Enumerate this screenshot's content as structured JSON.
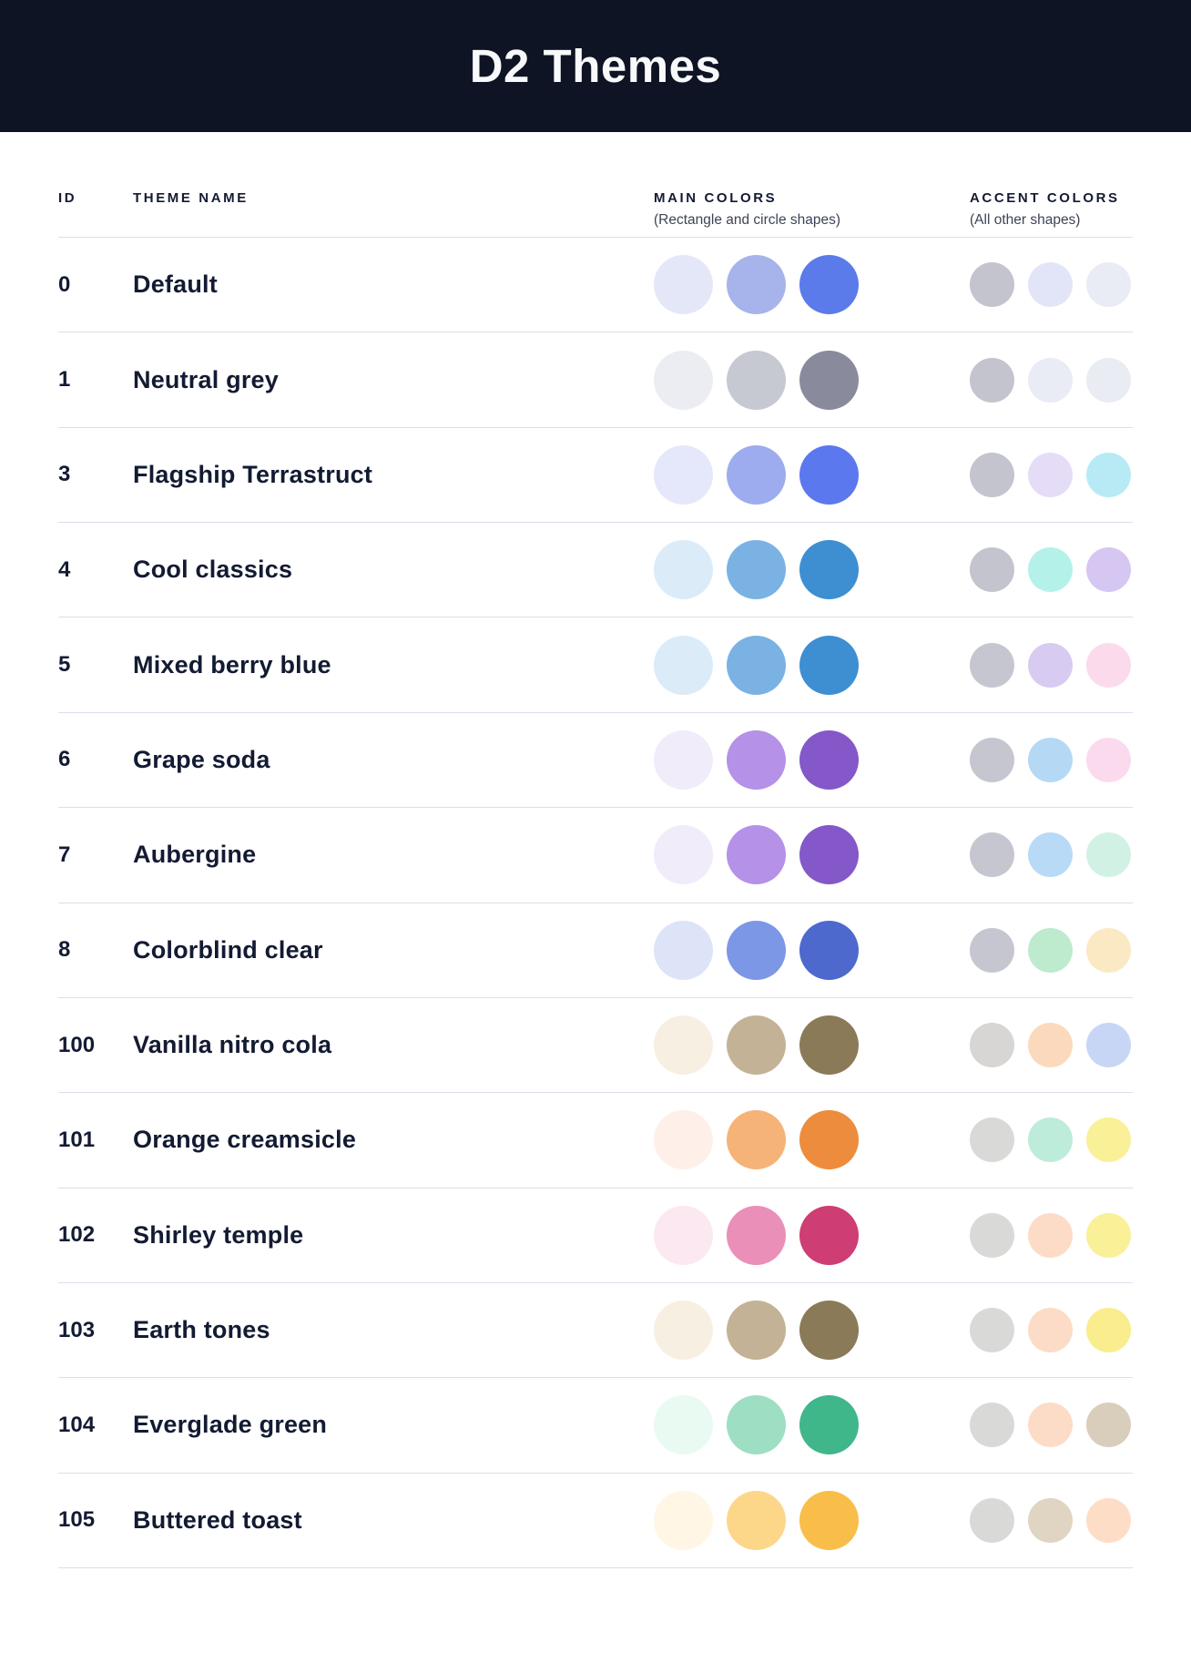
{
  "header": {
    "title": "D2 Themes"
  },
  "table": {
    "columns": {
      "id_label": "ID",
      "name_label": "THEME NAME",
      "main_label": "MAIN COLORS",
      "main_sublabel": "(Rectangle and circle shapes)",
      "accent_label": "ACCENT COLORS",
      "accent_sublabel": "(All other shapes)"
    },
    "rows": [
      {
        "id": "0",
        "name": "Default",
        "main": [
          "#E4E7F8",
          "#A6B4EB",
          "#5A7BE9"
        ],
        "accent": [
          "#C3C4CE",
          "#E2E5F8",
          "#EAECF5"
        ]
      },
      {
        "id": "1",
        "name": "Neutral grey",
        "main": [
          "#EBEDF3",
          "#C6C8D2",
          "#898B9C"
        ],
        "accent": [
          "#C3C4CE",
          "#E9EBF5",
          "#EAECF3"
        ]
      },
      {
        "id": "3",
        "name": "Flagship Terrastruct",
        "main": [
          "#E4E8FA",
          "#9DACEE",
          "#5C78EF"
        ],
        "accent": [
          "#C3C4CE",
          "#E5DDF7",
          "#B7EAF5"
        ]
      },
      {
        "id": "4",
        "name": "Cool classics",
        "main": [
          "#DCEBF8",
          "#7AB2E4",
          "#3E8ED2"
        ],
        "accent": [
          "#C3C4CE",
          "#B4F2E9",
          "#D5C7F2"
        ]
      },
      {
        "id": "5",
        "name": "Mixed berry blue",
        "main": [
          "#DCEBF8",
          "#7AB2E4",
          "#3E8ED2"
        ],
        "accent": [
          "#C5C6D0",
          "#D7CBF2",
          "#FBDAEC"
        ]
      },
      {
        "id": "6",
        "name": "Grape soda",
        "main": [
          "#F1ECFA",
          "#B591E8",
          "#8458C8"
        ],
        "accent": [
          "#C5C6D0",
          "#B5D9F5",
          "#FCDAED"
        ]
      },
      {
        "id": "7",
        "name": "Aubergine",
        "main": [
          "#F1ECFA",
          "#B591E8",
          "#8458C8"
        ],
        "accent": [
          "#C5C6D0",
          "#B8DAF6",
          "#D2F1E5"
        ]
      },
      {
        "id": "8",
        "name": "Colorblind clear",
        "main": [
          "#DDE4F8",
          "#7C97E6",
          "#4D69CE"
        ],
        "accent": [
          "#C5C6D0",
          "#BEEACE",
          "#FBE9C4"
        ]
      },
      {
        "id": "100",
        "name": "Vanilla nitro cola",
        "main": [
          "#F8EFE3",
          "#C4B296",
          "#8B7A58"
        ],
        "accent": [
          "#D7D6D4",
          "#FBD9BD",
          "#C8D6F5"
        ]
      },
      {
        "id": "101",
        "name": "Orange creamsicle",
        "main": [
          "#FEF0E8",
          "#F6B377",
          "#ED8C3C"
        ],
        "accent": [
          "#D9D9D7",
          "#BEECDA",
          "#FAF098"
        ]
      },
      {
        "id": "102",
        "name": "Shirley temple",
        "main": [
          "#FBE8F0",
          "#E98FB8",
          "#CE3D74"
        ],
        "accent": [
          "#D9D9D7",
          "#FCDCC6",
          "#FAF098"
        ]
      },
      {
        "id": "103",
        "name": "Earth tones",
        "main": [
          "#F8EFE3",
          "#C4B296",
          "#8B7A58"
        ],
        "accent": [
          "#D9D9D7",
          "#FCDCC6",
          "#F9ED8D"
        ]
      },
      {
        "id": "104",
        "name": "Everglade green",
        "main": [
          "#E9FAF2",
          "#9EDEC3",
          "#40B68B"
        ],
        "accent": [
          "#D9D9D7",
          "#FCDCC6",
          "#D8CEBB"
        ]
      },
      {
        "id": "105",
        "name": "Buttered toast",
        "main": [
          "#FFF6E5",
          "#FCD78A",
          "#F8BE49"
        ],
        "accent": [
          "#D9D9D7",
          "#E0D5C3",
          "#FEDDC6"
        ]
      }
    ]
  },
  "colors": {
    "header_bg": "#0F1424",
    "title": "#F8F9FB",
    "text": "#131B33",
    "subtitle": "#3E4356",
    "divider": "#DCDEEB",
    "page_bg": "#FFFFFF"
  }
}
